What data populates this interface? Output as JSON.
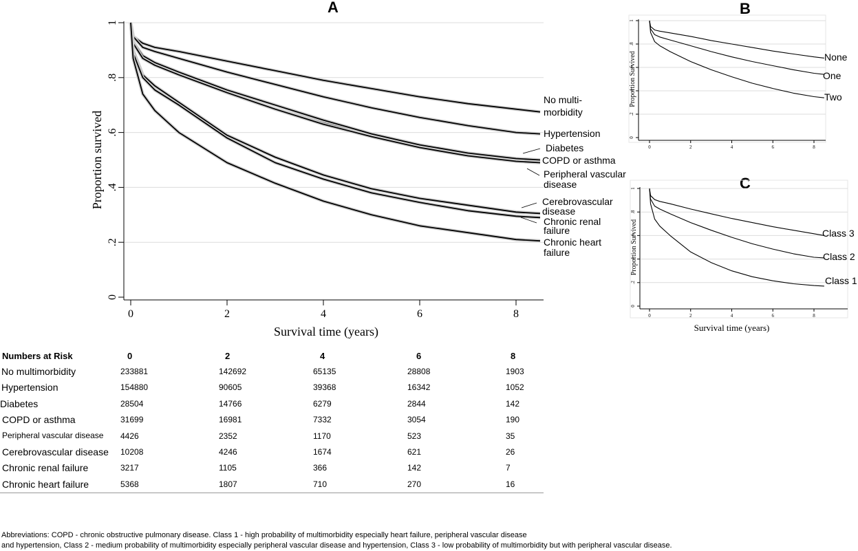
{
  "chart_data": [
    {
      "panel": "A",
      "type": "line",
      "ylabel": "Proportion survived",
      "xlabel": "Survival time (years)",
      "xlim": [
        0,
        8.5
      ],
      "ylim": [
        0,
        1
      ],
      "xticks": [
        "0",
        "2",
        "4",
        "6",
        "8"
      ],
      "yticks": [
        "0",
        ".2",
        ".4",
        ".6",
        ".8",
        "1"
      ],
      "grid": "horizontal",
      "x": [
        0,
        0.05,
        0.25,
        0.5,
        1,
        2,
        3,
        4,
        5,
        6,
        7,
        8,
        8.5
      ],
      "series": [
        {
          "name": "No multi-morbidity",
          "label_lines": [
            "No multi-",
            "morbidity"
          ],
          "values": [
            1,
            0.95,
            0.925,
            0.91,
            0.895,
            0.86,
            0.825,
            0.79,
            0.76,
            0.73,
            0.705,
            0.685,
            0.675
          ]
        },
        {
          "name": "Hypertension",
          "label_lines": [
            "Hypertension"
          ],
          "values": [
            1,
            0.95,
            0.91,
            0.895,
            0.87,
            0.82,
            0.775,
            0.73,
            0.69,
            0.655,
            0.625,
            0.6,
            0.595
          ]
        },
        {
          "name": "Diabetes",
          "label_lines": [
            "Diabetes"
          ],
          "values": [
            1,
            0.93,
            0.875,
            0.85,
            0.815,
            0.745,
            0.685,
            0.635,
            0.59,
            0.55,
            0.52,
            0.5,
            0.495
          ]
        },
        {
          "name": "COPD or asthma",
          "label_lines": [
            "COPD or asthma"
          ],
          "values": [
            1,
            0.93,
            0.88,
            0.855,
            0.82,
            0.755,
            0.7,
            0.645,
            0.595,
            0.555,
            0.525,
            0.505,
            0.5
          ]
        },
        {
          "name": "Peripheral vascular disease",
          "label_lines": [
            "Peripheral vascular",
            "disease"
          ],
          "values": [
            1,
            0.925,
            0.87,
            0.845,
            0.81,
            0.745,
            0.685,
            0.63,
            0.585,
            0.545,
            0.515,
            0.495,
            0.49
          ]
        },
        {
          "name": "Cerebrovascular disease",
          "label_lines": [
            "Cerebrovascular",
            "disease"
          ],
          "values": [
            1,
            0.9,
            0.81,
            0.77,
            0.71,
            0.59,
            0.51,
            0.445,
            0.395,
            0.36,
            0.335,
            0.31,
            0.305
          ]
        },
        {
          "name": "Chronic renal failure",
          "label_lines": [
            "Chronic renal",
            "failure"
          ],
          "values": [
            1,
            0.89,
            0.8,
            0.755,
            0.7,
            0.58,
            0.49,
            0.43,
            0.38,
            0.345,
            0.315,
            0.295,
            0.29
          ]
        },
        {
          "name": "Chronic heart failure",
          "label_lines": [
            "Chronic heart",
            "failure"
          ],
          "values": [
            1,
            0.87,
            0.74,
            0.68,
            0.6,
            0.49,
            0.415,
            0.35,
            0.3,
            0.26,
            0.235,
            0.21,
            0.205
          ]
        }
      ]
    },
    {
      "panel": "B",
      "type": "line",
      "ylabel": "Proportion Survived",
      "xlim": [
        0,
        8.5
      ],
      "ylim": [
        0,
        1
      ],
      "xticks": [
        "0",
        "2",
        "4",
        "6",
        "8"
      ],
      "yticks": [
        "0",
        ".2",
        ".4",
        ".6",
        ".8",
        "1"
      ],
      "x": [
        0,
        0.05,
        0.25,
        0.5,
        1,
        2,
        3,
        4,
        5,
        6,
        7,
        8,
        8.5
      ],
      "series": [
        {
          "name": "None",
          "values": [
            1,
            0.95,
            0.92,
            0.91,
            0.895,
            0.865,
            0.83,
            0.8,
            0.77,
            0.74,
            0.715,
            0.69,
            0.68
          ]
        },
        {
          "name": "One",
          "values": [
            1,
            0.93,
            0.88,
            0.86,
            0.835,
            0.785,
            0.735,
            0.69,
            0.65,
            0.615,
            0.58,
            0.55,
            0.54
          ]
        },
        {
          "name": "Two",
          "values": [
            1,
            0.9,
            0.82,
            0.785,
            0.735,
            0.65,
            0.58,
            0.52,
            0.465,
            0.42,
            0.38,
            0.35,
            0.34
          ]
        }
      ]
    },
    {
      "panel": "C",
      "type": "line",
      "ylabel": "Proportion Survived",
      "xlabel": "Survival time (years)",
      "xlim": [
        0,
        8.5
      ],
      "ylim": [
        0,
        1
      ],
      "xticks": [
        "0",
        "2",
        "4",
        "6",
        "8"
      ],
      "yticks": [
        "0",
        ".2",
        ".4",
        ".6",
        ".8",
        "1"
      ],
      "x": [
        0,
        0.05,
        0.25,
        0.5,
        1,
        2,
        3,
        4,
        5,
        6,
        7,
        8,
        8.5
      ],
      "series": [
        {
          "name": "Class 3",
          "values": [
            1,
            0.94,
            0.905,
            0.89,
            0.87,
            0.825,
            0.785,
            0.745,
            0.71,
            0.675,
            0.645,
            0.615,
            0.6
          ]
        },
        {
          "name": "Class 2",
          "values": [
            1,
            0.91,
            0.85,
            0.825,
            0.785,
            0.71,
            0.645,
            0.585,
            0.53,
            0.485,
            0.445,
            0.415,
            0.41
          ]
        },
        {
          "name": "Class 1",
          "values": [
            1,
            0.87,
            0.74,
            0.68,
            0.6,
            0.46,
            0.37,
            0.3,
            0.25,
            0.215,
            0.19,
            0.175,
            0.17
          ]
        }
      ]
    }
  ],
  "risk_table": {
    "header_label": "Numbers at Risk",
    "columns": [
      "0",
      "2",
      "4",
      "6",
      "8"
    ],
    "rows": [
      {
        "name": "No multimorbidity",
        "values": [
          "233881",
          "142692",
          "65135",
          "28808",
          "1903"
        ]
      },
      {
        "name": "Hypertension",
        "values": [
          "154880",
          "90605",
          "39368",
          "16342",
          "1052"
        ]
      },
      {
        "name": "Diabetes",
        "values": [
          "28504",
          "14766",
          "6279",
          "2844",
          "142"
        ]
      },
      {
        "name": "COPD or asthma",
        "values": [
          "31699",
          "16981",
          "7332",
          "3054",
          "190"
        ]
      },
      {
        "name": "Peripheral vascular disease",
        "values": [
          "4426",
          "2352",
          "1170",
          "523",
          "35"
        ]
      },
      {
        "name": "Cerebrovascular disease",
        "values": [
          "10208",
          "4246",
          "1674",
          "621",
          "26"
        ]
      },
      {
        "name": "Chronic renal failure",
        "values": [
          "3217",
          "1105",
          "366",
          "142",
          "7"
        ]
      },
      {
        "name": "Chronic heart failure",
        "values": [
          "5368",
          "1807",
          "710",
          "270",
          "16"
        ]
      }
    ]
  },
  "footnote": {
    "line1": "Abbreviations: COPD - chronic obstructive pulmonary disease. Class 1 - high probability of multimorbidity especially heart failure, peripheral vascular disease",
    "line2": "and hypertension, Class 2 - medium probability of multimorbidity especially peripheral vascular disease and hypertension, Class 3 - low probability of multimorbidity but with peripheral vascular disease."
  }
}
